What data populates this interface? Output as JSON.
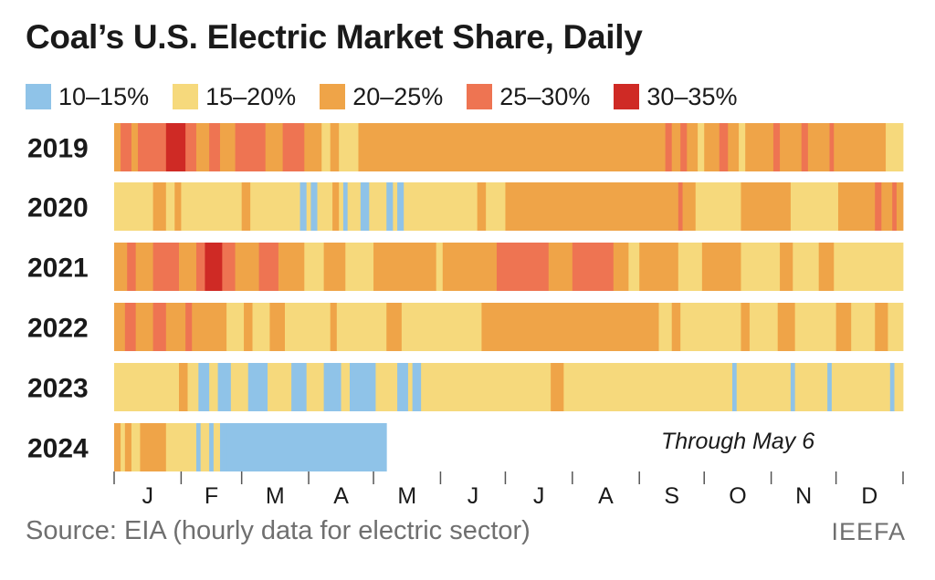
{
  "title": "Coal’s U.S. Electric Market Share, Daily",
  "legend": [
    {
      "label": "10–15%",
      "color": "#8fc3e8"
    },
    {
      "label": "15–20%",
      "color": "#f6d97c"
    },
    {
      "label": "20–25%",
      "color": "#efa448"
    },
    {
      "label": "25–30%",
      "color": "#ee7452"
    },
    {
      "label": "30–35%",
      "color": "#cf2a25"
    }
  ],
  "note": "Through May 6",
  "source": "Source: EIA (hourly data for electric sector)",
  "credit": "IEEFA",
  "chart_data": {
    "type": "heatmap",
    "title": "Coal’s U.S. Electric Market Share, Daily",
    "x_unit": "day of year",
    "categories_note": "Each segment: [start_day, end_day, share bin]; bins 1=10–15%, 2=15–20%, 3=20–25%, 4=25–30%, 5=30–35%",
    "months": [
      "J",
      "F",
      "M",
      "A",
      "M",
      "J",
      "J",
      "A",
      "S",
      "O",
      "N",
      "D"
    ],
    "month_start_days": [
      1,
      32,
      60,
      91,
      121,
      152,
      182,
      213,
      244,
      274,
      305,
      335
    ],
    "days_in_year": 365,
    "rows": [
      {
        "year": "2019",
        "segments": [
          [
            1,
            3,
            3
          ],
          [
            4,
            8,
            4
          ],
          [
            9,
            11,
            3
          ],
          [
            12,
            24,
            4
          ],
          [
            25,
            33,
            5
          ],
          [
            34,
            38,
            4
          ],
          [
            39,
            44,
            3
          ],
          [
            45,
            49,
            4
          ],
          [
            50,
            56,
            3
          ],
          [
            57,
            70,
            4
          ],
          [
            71,
            78,
            3
          ],
          [
            79,
            88,
            4
          ],
          [
            89,
            96,
            3
          ],
          [
            97,
            100,
            2
          ],
          [
            101,
            104,
            3
          ],
          [
            105,
            113,
            2
          ],
          [
            114,
            255,
            3
          ],
          [
            256,
            258,
            4
          ],
          [
            259,
            262,
            3
          ],
          [
            263,
            265,
            4
          ],
          [
            266,
            270,
            3
          ],
          [
            271,
            273,
            2
          ],
          [
            274,
            280,
            3
          ],
          [
            281,
            284,
            4
          ],
          [
            285,
            289,
            3
          ],
          [
            290,
            292,
            2
          ],
          [
            293,
            305,
            3
          ],
          [
            306,
            308,
            4
          ],
          [
            309,
            318,
            3
          ],
          [
            319,
            321,
            4
          ],
          [
            322,
            331,
            3
          ],
          [
            332,
            333,
            4
          ],
          [
            334,
            357,
            3
          ],
          [
            358,
            365,
            2
          ]
        ]
      },
      {
        "year": "2020",
        "segments": [
          [
            1,
            18,
            2
          ],
          [
            19,
            24,
            3
          ],
          [
            25,
            28,
            2
          ],
          [
            29,
            31,
            3
          ],
          [
            32,
            59,
            2
          ],
          [
            60,
            63,
            3
          ],
          [
            64,
            86,
            2
          ],
          [
            87,
            89,
            1
          ],
          [
            90,
            91,
            2
          ],
          [
            92,
            94,
            1
          ],
          [
            95,
            101,
            2
          ],
          [
            102,
            104,
            3
          ],
          [
            105,
            106,
            2
          ],
          [
            107,
            108,
            1
          ],
          [
            109,
            114,
            2
          ],
          [
            115,
            118,
            1
          ],
          [
            119,
            126,
            2
          ],
          [
            127,
            129,
            1
          ],
          [
            130,
            131,
            2
          ],
          [
            132,
            134,
            1
          ],
          [
            135,
            168,
            2
          ],
          [
            169,
            172,
            3
          ],
          [
            173,
            181,
            2
          ],
          [
            182,
            261,
            3
          ],
          [
            262,
            263,
            4
          ],
          [
            264,
            269,
            3
          ],
          [
            270,
            290,
            2
          ],
          [
            291,
            313,
            3
          ],
          [
            314,
            335,
            2
          ],
          [
            336,
            352,
            3
          ],
          [
            353,
            355,
            4
          ],
          [
            356,
            360,
            3
          ],
          [
            361,
            362,
            4
          ],
          [
            363,
            365,
            3
          ]
        ]
      },
      {
        "year": "2021",
        "segments": [
          [
            1,
            6,
            3
          ],
          [
            7,
            10,
            4
          ],
          [
            11,
            18,
            3
          ],
          [
            19,
            30,
            4
          ],
          [
            31,
            38,
            3
          ],
          [
            39,
            42,
            4
          ],
          [
            43,
            50,
            5
          ],
          [
            51,
            56,
            4
          ],
          [
            57,
            67,
            3
          ],
          [
            68,
            76,
            4
          ],
          [
            77,
            88,
            3
          ],
          [
            89,
            97,
            2
          ],
          [
            98,
            107,
            3
          ],
          [
            108,
            120,
            2
          ],
          [
            121,
            149,
            3
          ],
          [
            150,
            152,
            2
          ],
          [
            153,
            177,
            3
          ],
          [
            178,
            201,
            4
          ],
          [
            202,
            212,
            3
          ],
          [
            213,
            231,
            4
          ],
          [
            232,
            238,
            3
          ],
          [
            239,
            243,
            2
          ],
          [
            244,
            261,
            3
          ],
          [
            262,
            272,
            2
          ],
          [
            273,
            290,
            3
          ],
          [
            291,
            308,
            2
          ],
          [
            309,
            314,
            3
          ],
          [
            315,
            326,
            2
          ],
          [
            327,
            333,
            3
          ],
          [
            334,
            365,
            2
          ]
        ]
      },
      {
        "year": "2022",
        "segments": [
          [
            1,
            5,
            3
          ],
          [
            6,
            10,
            4
          ],
          [
            11,
            18,
            3
          ],
          [
            19,
            24,
            4
          ],
          [
            25,
            33,
            3
          ],
          [
            34,
            36,
            4
          ],
          [
            37,
            52,
            3
          ],
          [
            53,
            60,
            2
          ],
          [
            61,
            64,
            3
          ],
          [
            65,
            72,
            2
          ],
          [
            73,
            79,
            3
          ],
          [
            80,
            100,
            2
          ],
          [
            101,
            103,
            3
          ],
          [
            104,
            126,
            2
          ],
          [
            127,
            133,
            3
          ],
          [
            134,
            170,
            2
          ],
          [
            171,
            252,
            3
          ],
          [
            253,
            258,
            2
          ],
          [
            259,
            262,
            3
          ],
          [
            263,
            290,
            2
          ],
          [
            291,
            294,
            3
          ],
          [
            295,
            307,
            2
          ],
          [
            308,
            315,
            3
          ],
          [
            316,
            334,
            2
          ],
          [
            335,
            341,
            3
          ],
          [
            342,
            352,
            2
          ],
          [
            353,
            358,
            3
          ],
          [
            359,
            365,
            2
          ]
        ]
      },
      {
        "year": "2023",
        "segments": [
          [
            1,
            30,
            2
          ],
          [
            31,
            34,
            3
          ],
          [
            35,
            39,
            2
          ],
          [
            40,
            44,
            1
          ],
          [
            45,
            48,
            2
          ],
          [
            49,
            54,
            1
          ],
          [
            55,
            62,
            2
          ],
          [
            63,
            71,
            1
          ],
          [
            72,
            82,
            2
          ],
          [
            83,
            89,
            1
          ],
          [
            90,
            97,
            2
          ],
          [
            98,
            105,
            1
          ],
          [
            106,
            109,
            2
          ],
          [
            110,
            121,
            1
          ],
          [
            122,
            131,
            2
          ],
          [
            132,
            136,
            1
          ],
          [
            137,
            138,
            2
          ],
          [
            139,
            142,
            1
          ],
          [
            143,
            202,
            2
          ],
          [
            203,
            208,
            3
          ],
          [
            209,
            286,
            2
          ],
          [
            287,
            288,
            1
          ],
          [
            289,
            313,
            2
          ],
          [
            314,
            315,
            1
          ],
          [
            316,
            330,
            2
          ],
          [
            331,
            332,
            1
          ],
          [
            333,
            359,
            2
          ],
          [
            360,
            361,
            1
          ],
          [
            362,
            365,
            2
          ]
        ]
      },
      {
        "year": "2024",
        "segments": [
          [
            1,
            3,
            3
          ],
          [
            4,
            5,
            2
          ],
          [
            6,
            8,
            3
          ],
          [
            9,
            12,
            2
          ],
          [
            13,
            24,
            3
          ],
          [
            25,
            38,
            2
          ],
          [
            39,
            40,
            1
          ],
          [
            41,
            44,
            2
          ],
          [
            45,
            46,
            1
          ],
          [
            47,
            49,
            2
          ],
          [
            50,
            52,
            1
          ],
          [
            53,
            126,
            1
          ]
        ]
      }
    ]
  }
}
